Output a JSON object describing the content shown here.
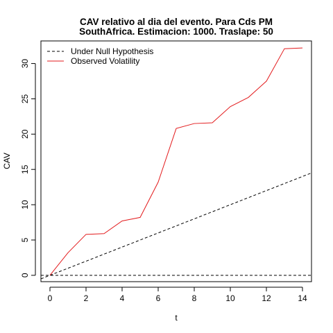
{
  "chart_data": {
    "type": "line",
    "title": "CAV relativo al dia del evento. Para Cds PM",
    "subtitle": "SouthAfrica. Estimacion: 1000. Traslape: 50",
    "xlabel": "t",
    "ylabel": "CAV",
    "xlim": [
      -0.5,
      14.5
    ],
    "ylim": [
      -0.9,
      33.2
    ],
    "x_ticks": [
      "0",
      "2",
      "4",
      "6",
      "8",
      "10",
      "12",
      "14"
    ],
    "y_ticks": [
      "0",
      "5",
      "10",
      "15",
      "20",
      "25",
      "30"
    ],
    "grid": false,
    "legend_position": "top-left",
    "reference_line": {
      "y": 0,
      "style": "dashed",
      "color": "#000000"
    },
    "series": [
      {
        "name": "Under Null Hypothesis",
        "style": "dashed",
        "color": "#000000",
        "x": [
          -0.5,
          14.5
        ],
        "y": [
          -0.5,
          14.5
        ]
      },
      {
        "name": "Observed Volatility",
        "style": "solid",
        "color": "#e31a1c",
        "x": [
          0,
          1,
          2,
          3,
          4,
          5,
          6,
          7,
          8,
          9,
          10,
          11,
          12,
          13,
          14
        ],
        "y": [
          0,
          3.2,
          5.8,
          5.9,
          7.7,
          8.2,
          13.2,
          20.8,
          21.5,
          21.6,
          23.9,
          25.2,
          27.5,
          32.1,
          32.2
        ]
      }
    ]
  }
}
